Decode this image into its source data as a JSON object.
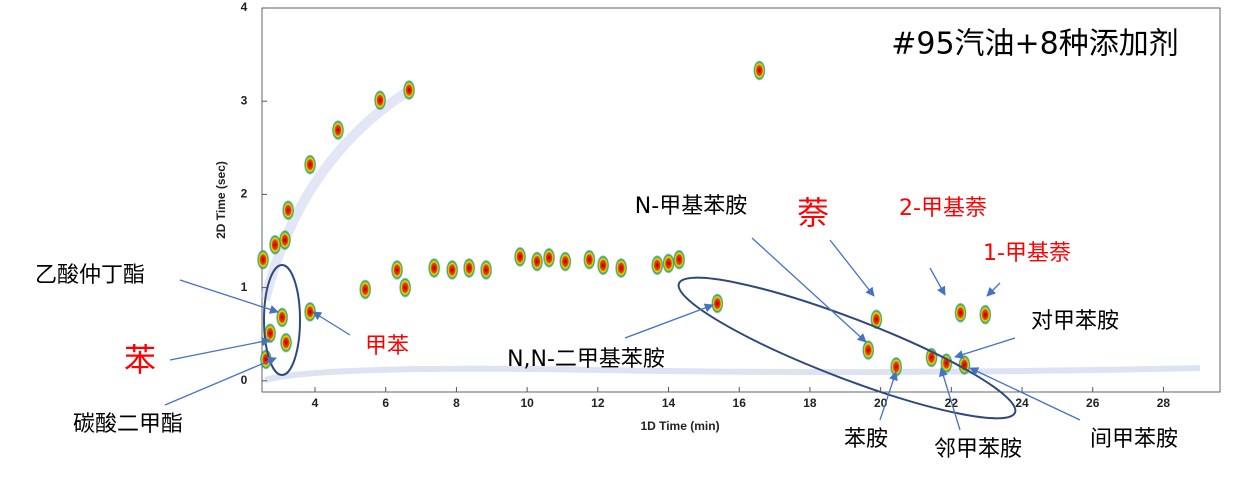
{
  "chart_data": {
    "type": "scatter",
    "x_label": "1D Time (min)",
    "y_label": "2D Time (sec)",
    "xlim": [
      2.5,
      29.6
    ],
    "ylim": [
      -0.12,
      4
    ],
    "xticks": [
      4,
      6,
      8,
      10,
      12,
      14,
      16,
      18,
      20,
      22,
      24,
      26,
      28
    ],
    "yticks": [
      0,
      1,
      2,
      3,
      4
    ],
    "color": "#d40000",
    "x": [
      5.42,
      6.55,
      7.37,
      7.88,
      8.36,
      8.84,
      9.8,
      10.28,
      10.62,
      11.08,
      11.76,
      12.15,
      12.66,
      6.32,
      13.68,
      14.0,
      14.3,
      15.38,
      16.57,
      3.07,
      3.18,
      3.86,
      2.73,
      2.61,
      19.65,
      19.88,
      20.44,
      21.44,
      21.86,
      22.37,
      22.26,
      22.96,
      3.15,
      2.87,
      3.24,
      3.86,
      4.65,
      5.84,
      6.66,
      2.53
    ],
    "values": [
      0.98,
      1.0,
      1.21,
      1.19,
      1.21,
      1.19,
      1.33,
      1.28,
      1.32,
      1.28,
      1.3,
      1.24,
      1.21,
      1.19,
      1.24,
      1.26,
      1.3,
      0.83,
      3.33,
      0.68,
      0.41,
      0.74,
      0.51,
      0.23,
      0.33,
      0.66,
      0.15,
      0.25,
      0.19,
      0.17,
      0.73,
      0.71,
      1.51,
      1.46,
      1.83,
      2.32,
      2.69,
      3.01,
      3.12,
      1.3
    ],
    "annotations": [
      {
        "text": "#95汽油+8种添加剂",
        "color": "#000000"
      },
      {
        "text": "乙酸仲丁酯",
        "color": "#000000"
      },
      {
        "text": "苯",
        "color": "#ff0000"
      },
      {
        "text": "碳酸二甲酯",
        "color": "#000000"
      },
      {
        "text": "甲苯",
        "color": "#ff0000"
      },
      {
        "text": "N,N-二甲基苯胺",
        "color": "#000000"
      },
      {
        "text": "N-甲基苯胺",
        "color": "#000000"
      },
      {
        "text": "萘",
        "color": "#ff0000"
      },
      {
        "text": "2-甲基萘",
        "color": "#ff0000"
      },
      {
        "text": "1-甲基萘",
        "color": "#ff0000"
      },
      {
        "text": "对甲苯胺",
        "color": "#000000"
      },
      {
        "text": "苯胺",
        "color": "#000000"
      },
      {
        "text": "邻甲苯胺",
        "color": "#000000"
      },
      {
        "text": "间甲苯胺",
        "color": "#000000"
      }
    ]
  }
}
